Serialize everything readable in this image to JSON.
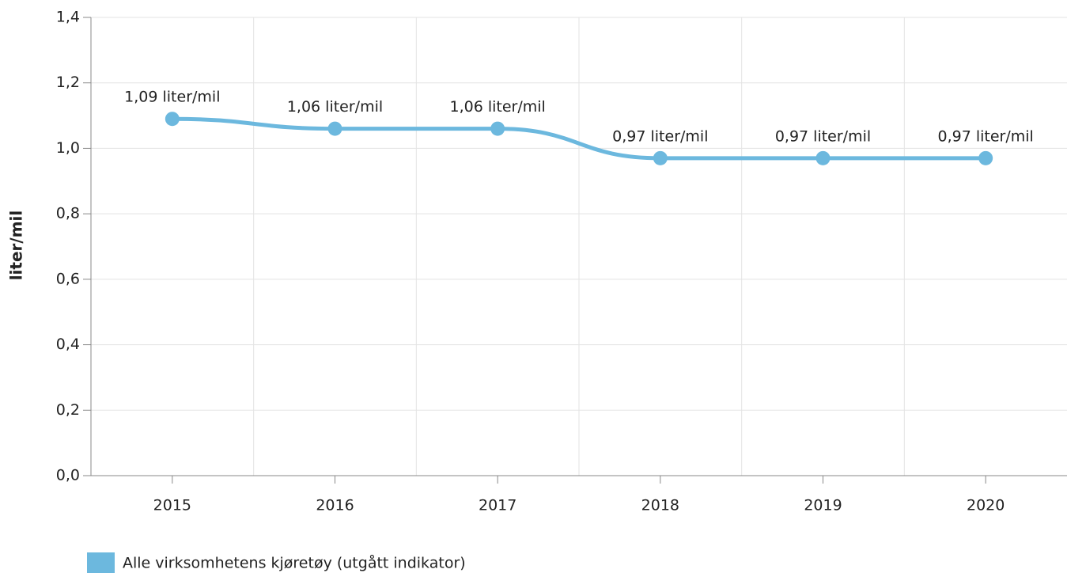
{
  "chart_data": {
    "type": "line",
    "y_label": "liter/mil",
    "categories": [
      "2015",
      "2016",
      "2017",
      "2018",
      "2019",
      "2020"
    ],
    "series": [
      {
        "name": "Alle virksomhetens kjøretøy (utgått indikator)",
        "color": "#6cb8de",
        "values": [
          1.09,
          1.06,
          1.06,
          0.97,
          0.97,
          0.97
        ],
        "value_labels": [
          "1,09 liter/mil",
          "1,06 liter/mil",
          "1,06 liter/mil",
          "0,97 liter/mil",
          "0,97 liter/mil",
          "0,97 liter/mil"
        ]
      }
    ],
    "ylim": [
      0,
      1.4
    ],
    "yticks": [
      {
        "value": 0,
        "label": "0,0"
      },
      {
        "value": 0.2,
        "label": "0,2"
      },
      {
        "value": 0.4,
        "label": "0,4"
      },
      {
        "value": 0.6,
        "label": "0,6"
      },
      {
        "value": 0.8,
        "label": "0,8"
      },
      {
        "value": 1.0,
        "label": "1,0"
      },
      {
        "value": 1.2,
        "label": "1,2"
      },
      {
        "value": 1.4,
        "label": "1,4"
      }
    ],
    "grid": true,
    "legend": "bottom-left"
  }
}
